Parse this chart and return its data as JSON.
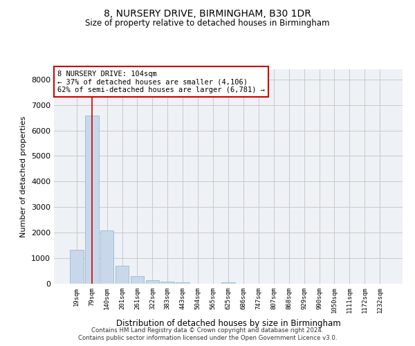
{
  "title": "8, NURSERY DRIVE, BIRMINGHAM, B30 1DR",
  "subtitle": "Size of property relative to detached houses in Birmingham",
  "xlabel": "Distribution of detached houses by size in Birmingham",
  "ylabel": "Number of detached properties",
  "bar_color": "#c8d8ea",
  "bar_edge_color": "#9ab8cc",
  "grid_color": "#c8c8c8",
  "bg_color": "#eef2f6",
  "annotation_box_color": "#cc0000",
  "vline_color": "#cc0000",
  "categories": [
    "19sqm",
    "79sqm",
    "140sqm",
    "201sqm",
    "261sqm",
    "322sqm",
    "383sqm",
    "443sqm",
    "504sqm",
    "565sqm",
    "625sqm",
    "686sqm",
    "747sqm",
    "807sqm",
    "868sqm",
    "929sqm",
    "990sqm",
    "1050sqm",
    "1111sqm",
    "1172sqm",
    "1232sqm"
  ],
  "values": [
    1320,
    6580,
    2080,
    700,
    290,
    140,
    90,
    60,
    0,
    0,
    60,
    0,
    0,
    0,
    0,
    0,
    0,
    0,
    0,
    0,
    0
  ],
  "ylim": [
    0,
    8400
  ],
  "yticks": [
    0,
    1000,
    2000,
    3000,
    4000,
    5000,
    6000,
    7000,
    8000
  ],
  "vline_x": 1.0,
  "annotation_text": "8 NURSERY DRIVE: 104sqm\n← 37% of detached houses are smaller (4,106)\n62% of semi-detached houses are larger (6,781) →",
  "footer_line1": "Contains HM Land Registry data © Crown copyright and database right 2024.",
  "footer_line2": "Contains public sector information licensed under the Open Government Licence v3.0."
}
